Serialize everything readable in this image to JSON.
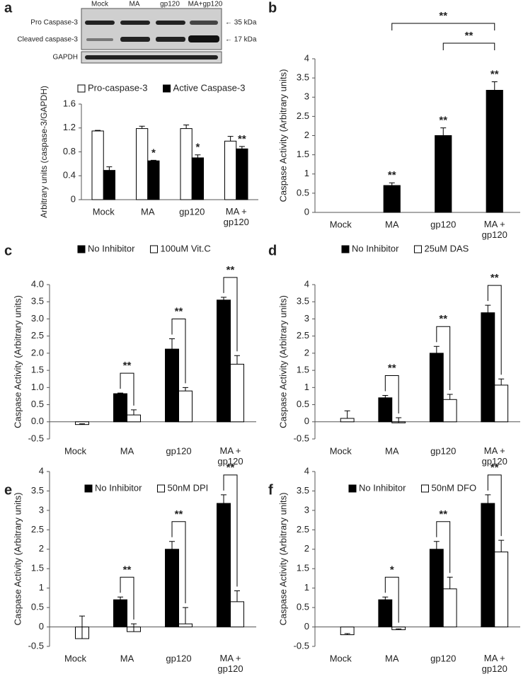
{
  "blot": {
    "lanes": [
      "Mock",
      "MA",
      "gp120",
      "MA+gp120"
    ],
    "rows": [
      "Pro Caspase-3",
      "Cleaved caspase-3",
      "GAPDH"
    ],
    "markers": [
      "← 35 kDa",
      "← 17 kDa"
    ]
  },
  "chart_data": [
    {
      "type": "bar",
      "panel": "a",
      "y_label": "Arbitrary units (caspase-3/GAPDH)",
      "categories": [
        "Mock",
        "MA",
        "gp120",
        "MA + gp120"
      ],
      "series": [
        {
          "name": "Pro-caspase-3",
          "color": "#ffffff",
          "values": [
            1.15,
            1.19,
            1.19,
            0.98
          ],
          "errors": [
            0.01,
            0.04,
            0.06,
            0.08
          ]
        },
        {
          "name": "Active Caspase-3",
          "color": "#000000",
          "values": [
            0.49,
            0.65,
            0.7,
            0.85
          ],
          "errors": [
            0.06,
            0.01,
            0.05,
            0.04
          ],
          "labels": [
            null,
            "*",
            "*",
            "**"
          ]
        }
      ],
      "ylim": [
        0,
        1.6
      ],
      "yticks": [
        0,
        0.4,
        0.8,
        1.2,
        1.6
      ],
      "legend": "top"
    },
    {
      "type": "bar",
      "panel": "b",
      "y_label": "Caspase Activity (Arbitrary units)",
      "categories": [
        "Mock",
        "MA",
        "gp120",
        "MA + gp120"
      ],
      "series": [
        {
          "name": null,
          "color": "#000000",
          "values": [
            0,
            0.7,
            2.0,
            3.18
          ],
          "errors": [
            0,
            0.07,
            0.2,
            0.22
          ],
          "labels": [
            null,
            "**",
            "**",
            "**"
          ]
        }
      ],
      "comparison_labels": [
        "**",
        "**"
      ],
      "ylim": [
        0,
        4
      ],
      "yticks": [
        0,
        0.5,
        1,
        1.5,
        2,
        2.5,
        3,
        3.5,
        4
      ]
    },
    {
      "type": "bar",
      "panel": "c",
      "y_label": "Caspase Activity (Arbitrary units)",
      "categories": [
        "Mock",
        "MA",
        "gp120",
        "MA + gp120"
      ],
      "series": [
        {
          "name": "No Inhibitor",
          "color": "#000000",
          "values": [
            0,
            0.82,
            2.12,
            3.55
          ],
          "errors": [
            0,
            0.02,
            0.3,
            0.08
          ]
        },
        {
          "name": "100uM Vit.C",
          "color": "#ffffff",
          "values": [
            -0.08,
            0.2,
            0.9,
            1.68
          ],
          "errors": [
            0.02,
            0.15,
            0.1,
            0.25
          ]
        }
      ],
      "bracket_labels": [
        null,
        "**",
        "**",
        "**"
      ],
      "ylim": [
        -0.5,
        4
      ],
      "yticks": [
        -0.5,
        {
          "value": 0,
          "label": "0.0"
        },
        0.5,
        {
          "value": 1,
          "label": "1.0"
        },
        1.5,
        {
          "value": 2,
          "label": "2.0"
        },
        2.5,
        {
          "value": 3,
          "label": "3.0"
        },
        3.5,
        {
          "value": 4,
          "label": "4.0"
        }
      ],
      "legend": "top"
    },
    {
      "type": "bar",
      "panel": "d",
      "y_label": "Caspase Activity (Arbitrary units)",
      "categories": [
        "Mock",
        "MA",
        "gp120",
        "MA + gp120"
      ],
      "series": [
        {
          "name": "No Inhibitor",
          "color": "#000000",
          "values": [
            0,
            0.7,
            2.0,
            3.18
          ],
          "errors": [
            0,
            0.07,
            0.2,
            0.22
          ]
        },
        {
          "name": "25uM DAS",
          "color": "#ffffff",
          "values": [
            0.1,
            -0.03,
            0.65,
            1.07
          ],
          "errors": [
            0.22,
            0.15,
            0.15,
            0.18
          ]
        }
      ],
      "bracket_labels": [
        null,
        "**",
        "**",
        "**"
      ],
      "ylim": [
        -0.5,
        4
      ],
      "yticks": [
        -0.5,
        0,
        0.5,
        1,
        1.5,
        2,
        2.5,
        3,
        3.5,
        4
      ],
      "legend": "top"
    },
    {
      "type": "bar",
      "panel": "e",
      "y_label": "Caspase Activity (Arbitrary units)",
      "categories": [
        "Mock",
        "MA",
        "gp120",
        "MA + gp120"
      ],
      "series": [
        {
          "name": "No Inhibitor",
          "color": "#000000",
          "values": [
            0,
            0.7,
            2.0,
            3.18
          ],
          "errors": [
            0,
            0.07,
            0.2,
            0.22
          ]
        },
        {
          "name": "50nM DPI",
          "color": "#ffffff",
          "values": [
            -0.3,
            -0.12,
            0.08,
            0.65
          ],
          "errors": [
            0.58,
            0.2,
            0.42,
            0.28
          ]
        }
      ],
      "bracket_labels": [
        null,
        "**",
        "**",
        "**"
      ],
      "ylim": [
        -0.5,
        4
      ],
      "yticks": [
        -0.5,
        0,
        0.5,
        1,
        1.5,
        2,
        2.5,
        3,
        3.5,
        4
      ],
      "legend": "top"
    },
    {
      "type": "bar",
      "panel": "f",
      "y_label": "Caspase Activity (Arbitrary units)",
      "categories": [
        "Mock",
        "MA",
        "gp120",
        "MA + gp120"
      ],
      "series": [
        {
          "name": "No Inhibitor",
          "color": "#000000",
          "values": [
            0,
            0.7,
            2.0,
            3.18
          ],
          "errors": [
            0,
            0.07,
            0.2,
            0.22
          ]
        },
        {
          "name": "50nM DFO",
          "color": "#ffffff",
          "values": [
            -0.2,
            -0.07,
            0.98,
            1.93
          ],
          "errors": [
            0.03,
            0.02,
            0.3,
            0.3
          ]
        }
      ],
      "bracket_labels": [
        null,
        "*",
        "**",
        "**"
      ],
      "ylim": [
        -0.5,
        4
      ],
      "yticks": [
        -0.5,
        0,
        0.5,
        1,
        1.5,
        2,
        2.5,
        3,
        3.5,
        4
      ],
      "legend": "top"
    }
  ]
}
